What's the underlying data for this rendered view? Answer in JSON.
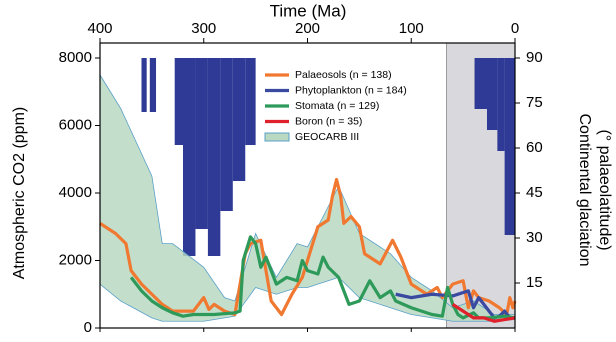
{
  "chart_data": {
    "type": "line",
    "x_label": "Time (Ma)",
    "y_label": "Atmospheric CO2 (ppm)",
    "y2_label": [
      "Continental glaciation",
      "(° palaeolatitude)"
    ],
    "xlim": [
      400,
      0
    ],
    "xticks": [
      400,
      300,
      200,
      100,
      0
    ],
    "ylim": [
      0,
      8000
    ],
    "yticks": [
      0,
      2000,
      4000,
      6000,
      8000
    ],
    "y2lim": [
      0,
      90
    ],
    "y2ticks": [
      15,
      30,
      45,
      60,
      75,
      90
    ],
    "shaded_span": [
      66,
      0
    ],
    "shaded_color": "#d9d9dd",
    "glaciation": {
      "color": "#2e3a96",
      "x_start": [
        360,
        352,
        328,
        320,
        308,
        296,
        284,
        272,
        260,
        39,
        27,
        17,
        10
      ],
      "x_end": [
        355,
        346,
        320,
        308,
        296,
        284,
        272,
        260,
        250,
        27,
        17,
        10,
        0
      ],
      "values": [
        72,
        72,
        61,
        24,
        33,
        24,
        39,
        49,
        61,
        73,
        66,
        59,
        31
      ]
    },
    "series": [
      {
        "name": "Palaeosols (n = 138)",
        "color": "#f07830",
        "kind": "line",
        "x": [
          400,
          385,
          375,
          370,
          360,
          350,
          340,
          330,
          320,
          310,
          300,
          295,
          290,
          280,
          270,
          260,
          255,
          245,
          235,
          225,
          215,
          205,
          195,
          190,
          180,
          176,
          172,
          168,
          165,
          158,
          150,
          145,
          130,
          118,
          110,
          100,
          85,
          75,
          70,
          60,
          50,
          45,
          40,
          35,
          25,
          15,
          8,
          5,
          2,
          0
        ],
        "values": [
          3100,
          2800,
          2500,
          1700,
          1300,
          1000,
          700,
          500,
          500,
          500,
          900,
          550,
          700,
          500,
          400,
          2200,
          2500,
          2600,
          800,
          400,
          1000,
          1500,
          2500,
          3000,
          3200,
          3900,
          4400,
          3900,
          3100,
          3300,
          3000,
          2200,
          1900,
          2600,
          2100,
          1300,
          1000,
          1200,
          900,
          1300,
          1400,
          600,
          1100,
          900,
          800,
          600,
          400,
          900,
          600,
          800
        ]
      },
      {
        "name": "Phytoplankton (n = 184)",
        "color": "#3a4aa0",
        "kind": "line",
        "x": [
          115,
          100,
          80,
          60,
          45,
          40,
          35,
          30,
          25,
          20,
          15,
          10,
          5,
          0
        ],
        "values": [
          1000,
          900,
          1000,
          950,
          1100,
          600,
          900,
          700,
          500,
          300,
          350,
          500,
          300,
          300
        ]
      },
      {
        "name": "Stomata (n = 129)",
        "color": "#2e9a5a",
        "kind": "line",
        "x": [
          370,
          360,
          350,
          340,
          330,
          320,
          310,
          290,
          270,
          265,
          262,
          255,
          250,
          245,
          240,
          230,
          220,
          210,
          205,
          200,
          190,
          185,
          180,
          170,
          160,
          150,
          140,
          130,
          120,
          115,
          100,
          80,
          70,
          65,
          60,
          55,
          50,
          40,
          35,
          25,
          10,
          0
        ],
        "values": [
          1500,
          1100,
          800,
          600,
          450,
          350,
          400,
          400,
          450,
          500,
          2000,
          2700,
          2500,
          1800,
          2100,
          1300,
          1500,
          1400,
          2000,
          1700,
          1600,
          2100,
          1800,
          1500,
          700,
          800,
          1400,
          900,
          1100,
          800,
          600,
          400,
          350,
          1200,
          700,
          400,
          300,
          450,
          300,
          300,
          350,
          300
        ]
      },
      {
        "name": "Boron (n = 35)",
        "color": "#e0202a",
        "kind": "line",
        "x": [
          60,
          50,
          40,
          30,
          20,
          10,
          0
        ],
        "values": [
          700,
          500,
          300,
          300,
          200,
          250,
          300
        ]
      },
      {
        "name": "GEOCARB III",
        "color": "#b9d9c3",
        "kind": "band",
        "edge": "#5aa0c8",
        "x": [
          400,
          380,
          350,
          340,
          330,
          300,
          280,
          270,
          250,
          230,
          210,
          200,
          170,
          150,
          120,
          100,
          80,
          60,
          40,
          20,
          0
        ],
        "values": [
          7500,
          6500,
          4500,
          2500,
          2500,
          1800,
          900,
          800,
          2800,
          1500,
          2500,
          2400,
          4200,
          2800,
          2200,
          1500,
          1100,
          600,
          800,
          400,
          400
        ],
        "lower": [
          1300,
          800,
          300,
          200,
          200,
          200,
          300,
          350,
          1200,
          1000,
          1200,
          1200,
          1500,
          900,
          600,
          400,
          300,
          200,
          200,
          200,
          250
        ]
      }
    ]
  }
}
